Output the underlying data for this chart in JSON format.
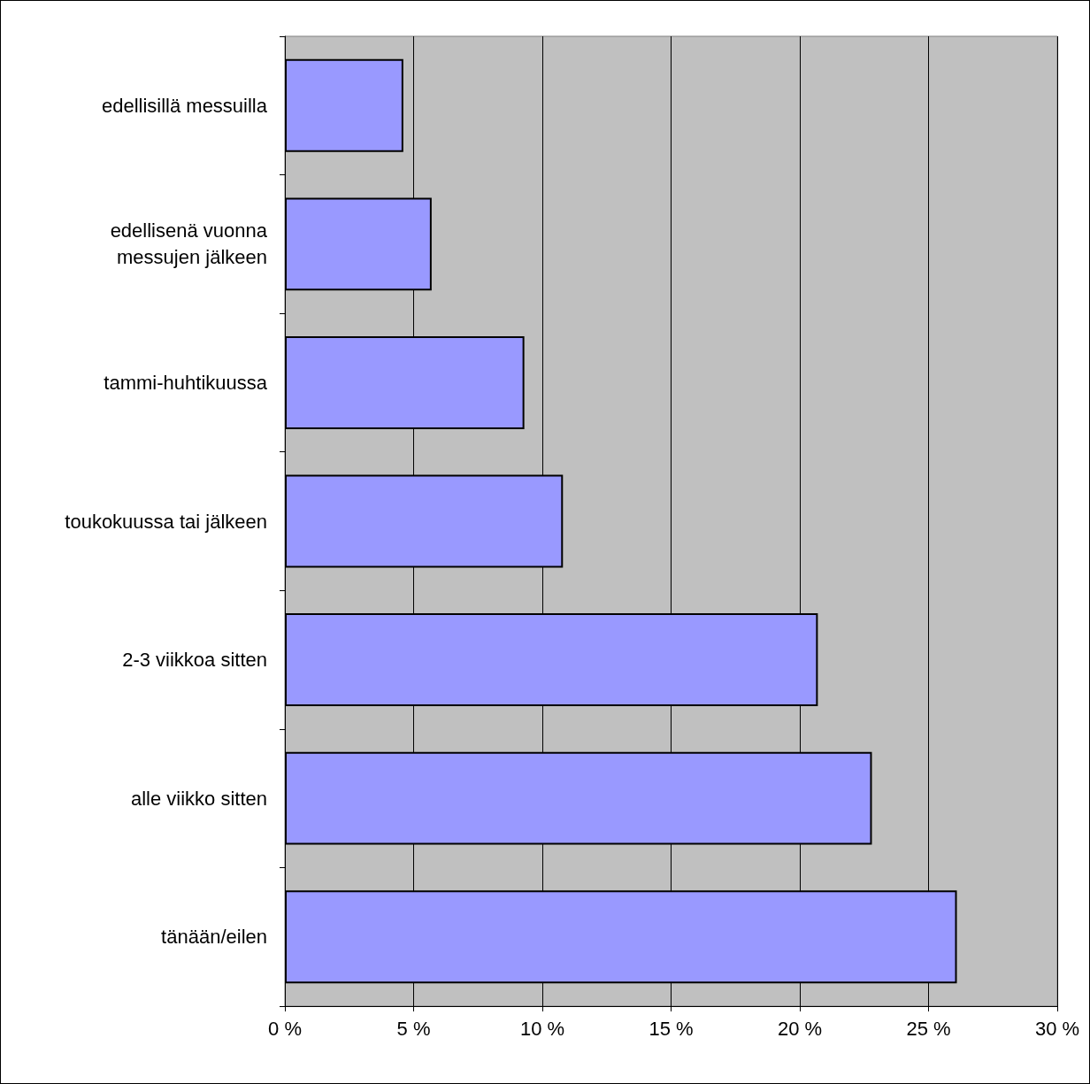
{
  "chart_data": {
    "type": "bar",
    "orientation": "horizontal",
    "categories": [
      "edellisillä messuilla",
      "edellisenä vuonna\nmessujen jälkeen",
      "tammi-huhtikuussa",
      "toukokuussa tai jälkeen",
      "2-3 viikkoa sitten",
      "alle viikko sitten",
      "tänään/eilen"
    ],
    "values": [
      4.6,
      5.7,
      9.3,
      10.8,
      20.7,
      22.8,
      26.1
    ],
    "color": "#9999ff",
    "xlim": [
      0,
      30
    ],
    "xticks": [
      {
        "value": 0,
        "label": "0 %"
      },
      {
        "value": 5,
        "label": "5 %"
      },
      {
        "value": 10,
        "label": "10 %"
      },
      {
        "value": 15,
        "label": "15 %"
      },
      {
        "value": 20,
        "label": "20 %"
      },
      {
        "value": 25,
        "label": "25 %"
      },
      {
        "value": 30,
        "label": "30 %"
      }
    ],
    "grid": "x"
  }
}
